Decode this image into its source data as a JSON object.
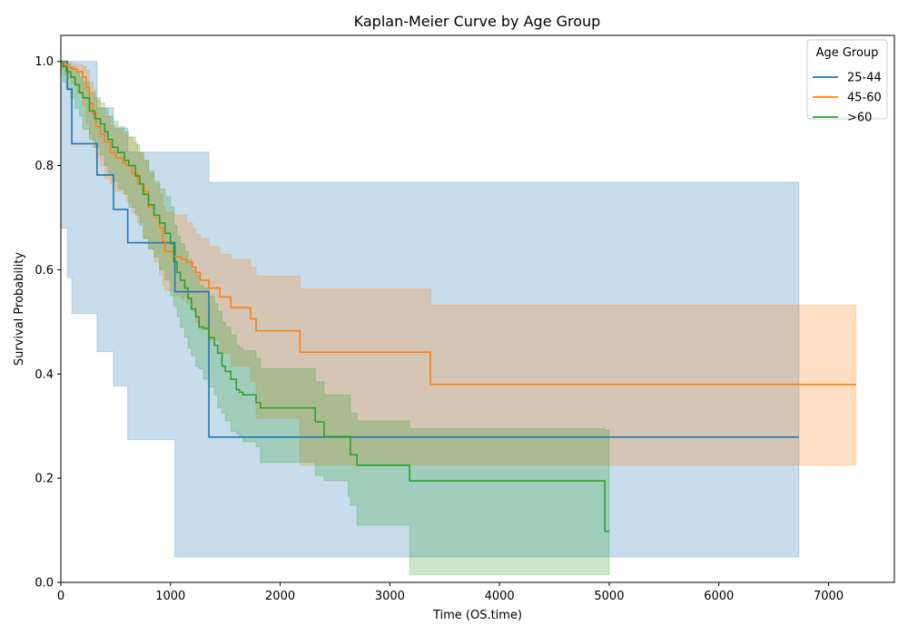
{
  "chart_data": {
    "type": "line",
    "title": "Kaplan-Meier Curve by Age Group",
    "xlabel": "Time (OS.time)",
    "ylabel": "Survival Probability",
    "xlim": [
      0,
      7600
    ],
    "ylim": [
      0,
      1.05
    ],
    "xticks": [
      0,
      1000,
      2000,
      3000,
      4000,
      5000,
      6000,
      7000
    ],
    "yticks": [
      0.0,
      0.2,
      0.4,
      0.6,
      0.8,
      1.0
    ],
    "xtick_labels": [
      "0",
      "1000",
      "2000",
      "3000",
      "4000",
      "5000",
      "6000",
      "7000"
    ],
    "ytick_labels": [
      "0.0",
      "0.2",
      "0.4",
      "0.6",
      "0.8",
      "1.0"
    ],
    "grid": false,
    "step": "post",
    "legend": {
      "title": "Age Group",
      "position": "top-right"
    },
    "series": [
      {
        "name": "25-44",
        "color": "#1f77b4",
        "x": [
          0,
          60,
          100,
          330,
          480,
          610,
          1040,
          1350,
          6730
        ],
        "y": [
          1.0,
          0.947,
          0.842,
          0.782,
          0.716,
          0.652,
          0.558,
          0.279,
          0.279
        ],
        "ci_lower": [
          1.0,
          0.68,
          0.585,
          0.516,
          0.443,
          0.377,
          0.274,
          0.049,
          0.049
        ],
        "ci_upper": [
          1.0,
          1.0,
          1.0,
          0.911,
          0.872,
          0.826,
          0.826,
          0.768,
          0.578
        ]
      },
      {
        "name": "45-60",
        "color": "#ff7f0e",
        "x": [
          0,
          30,
          60,
          100,
          150,
          200,
          230,
          260,
          290,
          320,
          360,
          400,
          450,
          500,
          560,
          600,
          650,
          700,
          760,
          800,
          850,
          900,
          930,
          950,
          1030,
          1100,
          1150,
          1200,
          1230,
          1270,
          1350,
          1450,
          1550,
          1730,
          1780,
          2180,
          3370,
          7250
        ],
        "y": [
          1.0,
          0.993,
          0.989,
          0.985,
          0.98,
          0.97,
          0.95,
          0.92,
          0.9,
          0.875,
          0.86,
          0.845,
          0.825,
          0.815,
          0.805,
          0.8,
          0.785,
          0.765,
          0.75,
          0.72,
          0.7,
          0.68,
          0.655,
          0.635,
          0.625,
          0.62,
          0.615,
          0.605,
          0.595,
          0.58,
          0.565,
          0.548,
          0.527,
          0.506,
          0.483,
          0.442,
          0.38,
          0.38
        ],
        "ci_lower": [
          1.0,
          0.985,
          0.975,
          0.968,
          0.958,
          0.94,
          0.915,
          0.88,
          0.86,
          0.835,
          0.815,
          0.8,
          0.775,
          0.765,
          0.75,
          0.745,
          0.73,
          0.71,
          0.69,
          0.66,
          0.64,
          0.615,
          0.59,
          0.57,
          0.56,
          0.55,
          0.545,
          0.535,
          0.52,
          0.5,
          0.485,
          0.465,
          0.44,
          0.415,
          0.385,
          0.315,
          0.225,
          0.225
        ],
        "ci_upper": [
          1.0,
          1.0,
          0.998,
          0.995,
          0.993,
          0.99,
          0.983,
          0.96,
          0.945,
          0.925,
          0.91,
          0.895,
          0.878,
          0.87,
          0.86,
          0.855,
          0.845,
          0.825,
          0.81,
          0.785,
          0.765,
          0.745,
          0.72,
          0.71,
          0.705,
          0.705,
          0.69,
          0.68,
          0.668,
          0.66,
          0.645,
          0.63,
          0.62,
          0.605,
          0.588,
          0.563,
          0.532,
          0.532
        ]
      },
      {
        "name": ">60",
        "color": "#2ca02c",
        "x": [
          0,
          20,
          50,
          90,
          130,
          170,
          200,
          260,
          310,
          360,
          400,
          430,
          470,
          520,
          580,
          620,
          680,
          720,
          750,
          800,
          850,
          900,
          950,
          1000,
          1030,
          1060,
          1090,
          1130,
          1160,
          1190,
          1230,
          1260,
          1300,
          1350,
          1400,
          1430,
          1470,
          1500,
          1550,
          1600,
          1630,
          1660,
          1780,
          1820,
          2320,
          2400,
          2620,
          2640,
          2700,
          3180,
          4960,
          5000
        ],
        "y": [
          1.0,
          0.99,
          0.98,
          0.97,
          0.955,
          0.94,
          0.93,
          0.905,
          0.89,
          0.88,
          0.865,
          0.85,
          0.835,
          0.825,
          0.81,
          0.8,
          0.78,
          0.765,
          0.745,
          0.725,
          0.705,
          0.69,
          0.67,
          0.65,
          0.615,
          0.595,
          0.58,
          0.565,
          0.545,
          0.525,
          0.51,
          0.49,
          0.488,
          0.47,
          0.455,
          0.44,
          0.415,
          0.405,
          0.39,
          0.37,
          0.365,
          0.36,
          0.345,
          0.335,
          0.308,
          0.28,
          0.28,
          0.245,
          0.225,
          0.195,
          0.098,
          0.098
        ],
        "ci_lower": [
          1.0,
          0.975,
          0.96,
          0.945,
          0.93,
          0.91,
          0.895,
          0.87,
          0.85,
          0.835,
          0.82,
          0.8,
          0.785,
          0.77,
          0.755,
          0.745,
          0.72,
          0.705,
          0.685,
          0.66,
          0.64,
          0.625,
          0.6,
          0.58,
          0.55,
          0.53,
          0.51,
          0.49,
          0.47,
          0.45,
          0.435,
          0.415,
          0.41,
          0.39,
          0.375,
          0.36,
          0.335,
          0.325,
          0.31,
          0.29,
          0.285,
          0.28,
          0.27,
          0.26,
          0.23,
          0.205,
          0.195,
          0.165,
          0.148,
          0.11,
          0.015,
          0.015
        ],
        "ci_upper": [
          1.0,
          1.0,
          0.995,
          0.99,
          0.98,
          0.97,
          0.96,
          0.94,
          0.93,
          0.92,
          0.91,
          0.895,
          0.885,
          0.875,
          0.865,
          0.855,
          0.84,
          0.825,
          0.81,
          0.79,
          0.77,
          0.755,
          0.74,
          0.72,
          0.685,
          0.665,
          0.65,
          0.635,
          0.62,
          0.6,
          0.59,
          0.57,
          0.565,
          0.55,
          0.535,
          0.52,
          0.5,
          0.49,
          0.475,
          0.455,
          0.45,
          0.445,
          0.43,
          0.41,
          0.385,
          0.36,
          0.36,
          0.325,
          0.31,
          0.295,
          0.292,
          0.292
        ]
      }
    ]
  }
}
